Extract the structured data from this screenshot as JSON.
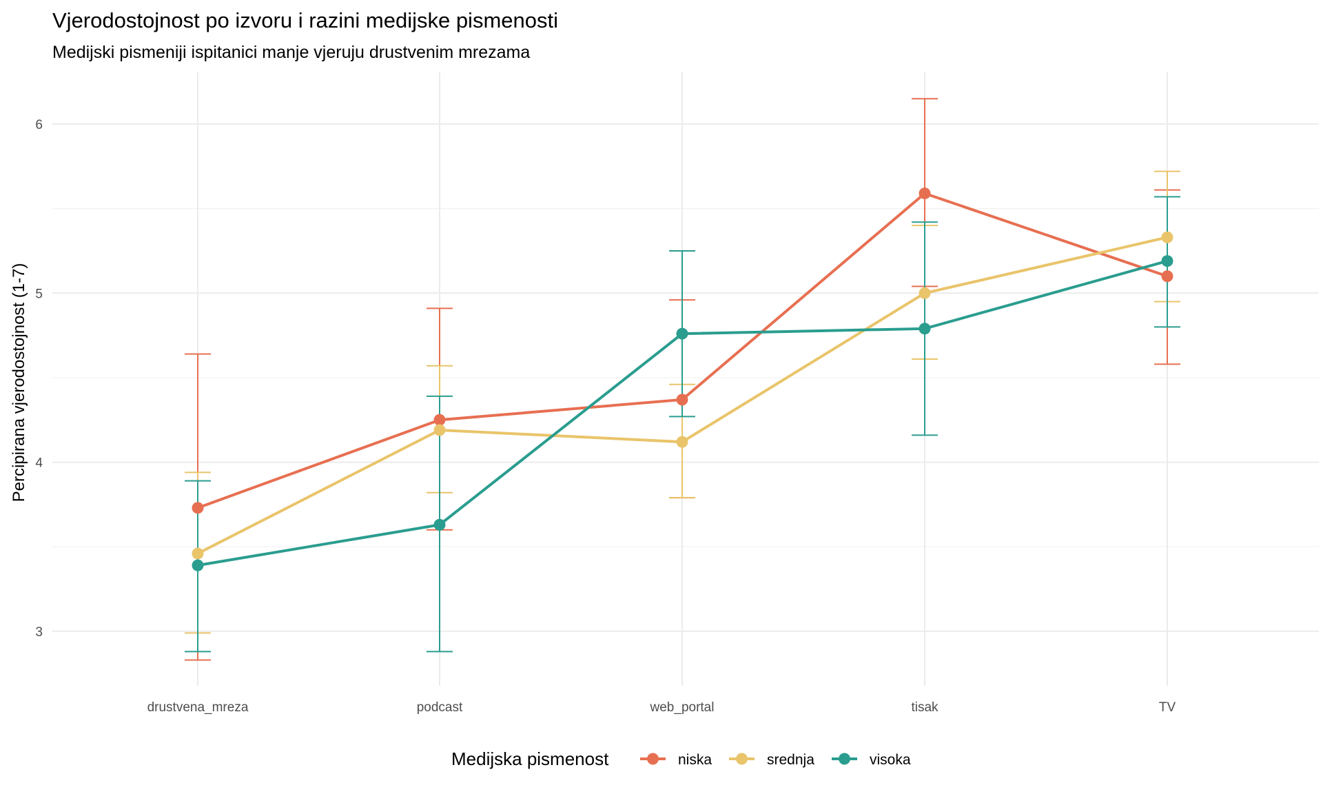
{
  "chart_data": {
    "type": "line",
    "title": "Vjerodostojnost po izvoru i razini medijske pismenosti",
    "subtitle": "Medijski pismeniji ispitanici manje vjeruju drustvenim mrezama",
    "xlabel": "",
    "ylabel": "Percipirana vjerodostojnost (1-7)",
    "categories": [
      "drustvena_mreza",
      "podcast",
      "web_portal",
      "tisak",
      "TV"
    ],
    "ylim": [
      2.68,
      6.31
    ],
    "yticks": [
      3,
      4,
      5,
      6
    ],
    "ytick_labels": [
      "3",
      "4",
      "5",
      "6"
    ],
    "grid": true,
    "legend": {
      "title": "Medijska pismenost",
      "position": "bottom"
    },
    "series": [
      {
        "name": "niska",
        "color": "#E76F51",
        "values": [
          3.73,
          4.25,
          4.37,
          5.59,
          5.1
        ],
        "ci_low": [
          2.83,
          3.6,
          3.79,
          5.04,
          4.58
        ],
        "ci_high": [
          4.64,
          4.91,
          4.96,
          6.15,
          5.61
        ]
      },
      {
        "name": "srednja",
        "color": "#E9C46A",
        "values": [
          3.46,
          4.19,
          4.12,
          5.0,
          5.33
        ],
        "ci_low": [
          2.99,
          3.82,
          3.79,
          4.61,
          4.95
        ],
        "ci_high": [
          3.94,
          4.57,
          4.46,
          5.4,
          5.72
        ]
      },
      {
        "name": "visoka",
        "color": "#2A9D8F",
        "values": [
          3.39,
          3.63,
          4.76,
          4.79,
          5.19
        ],
        "ci_low": [
          2.88,
          2.88,
          4.27,
          4.16,
          4.8
        ],
        "ci_high": [
          3.89,
          4.39,
          5.25,
          5.42,
          5.57
        ]
      }
    ]
  }
}
